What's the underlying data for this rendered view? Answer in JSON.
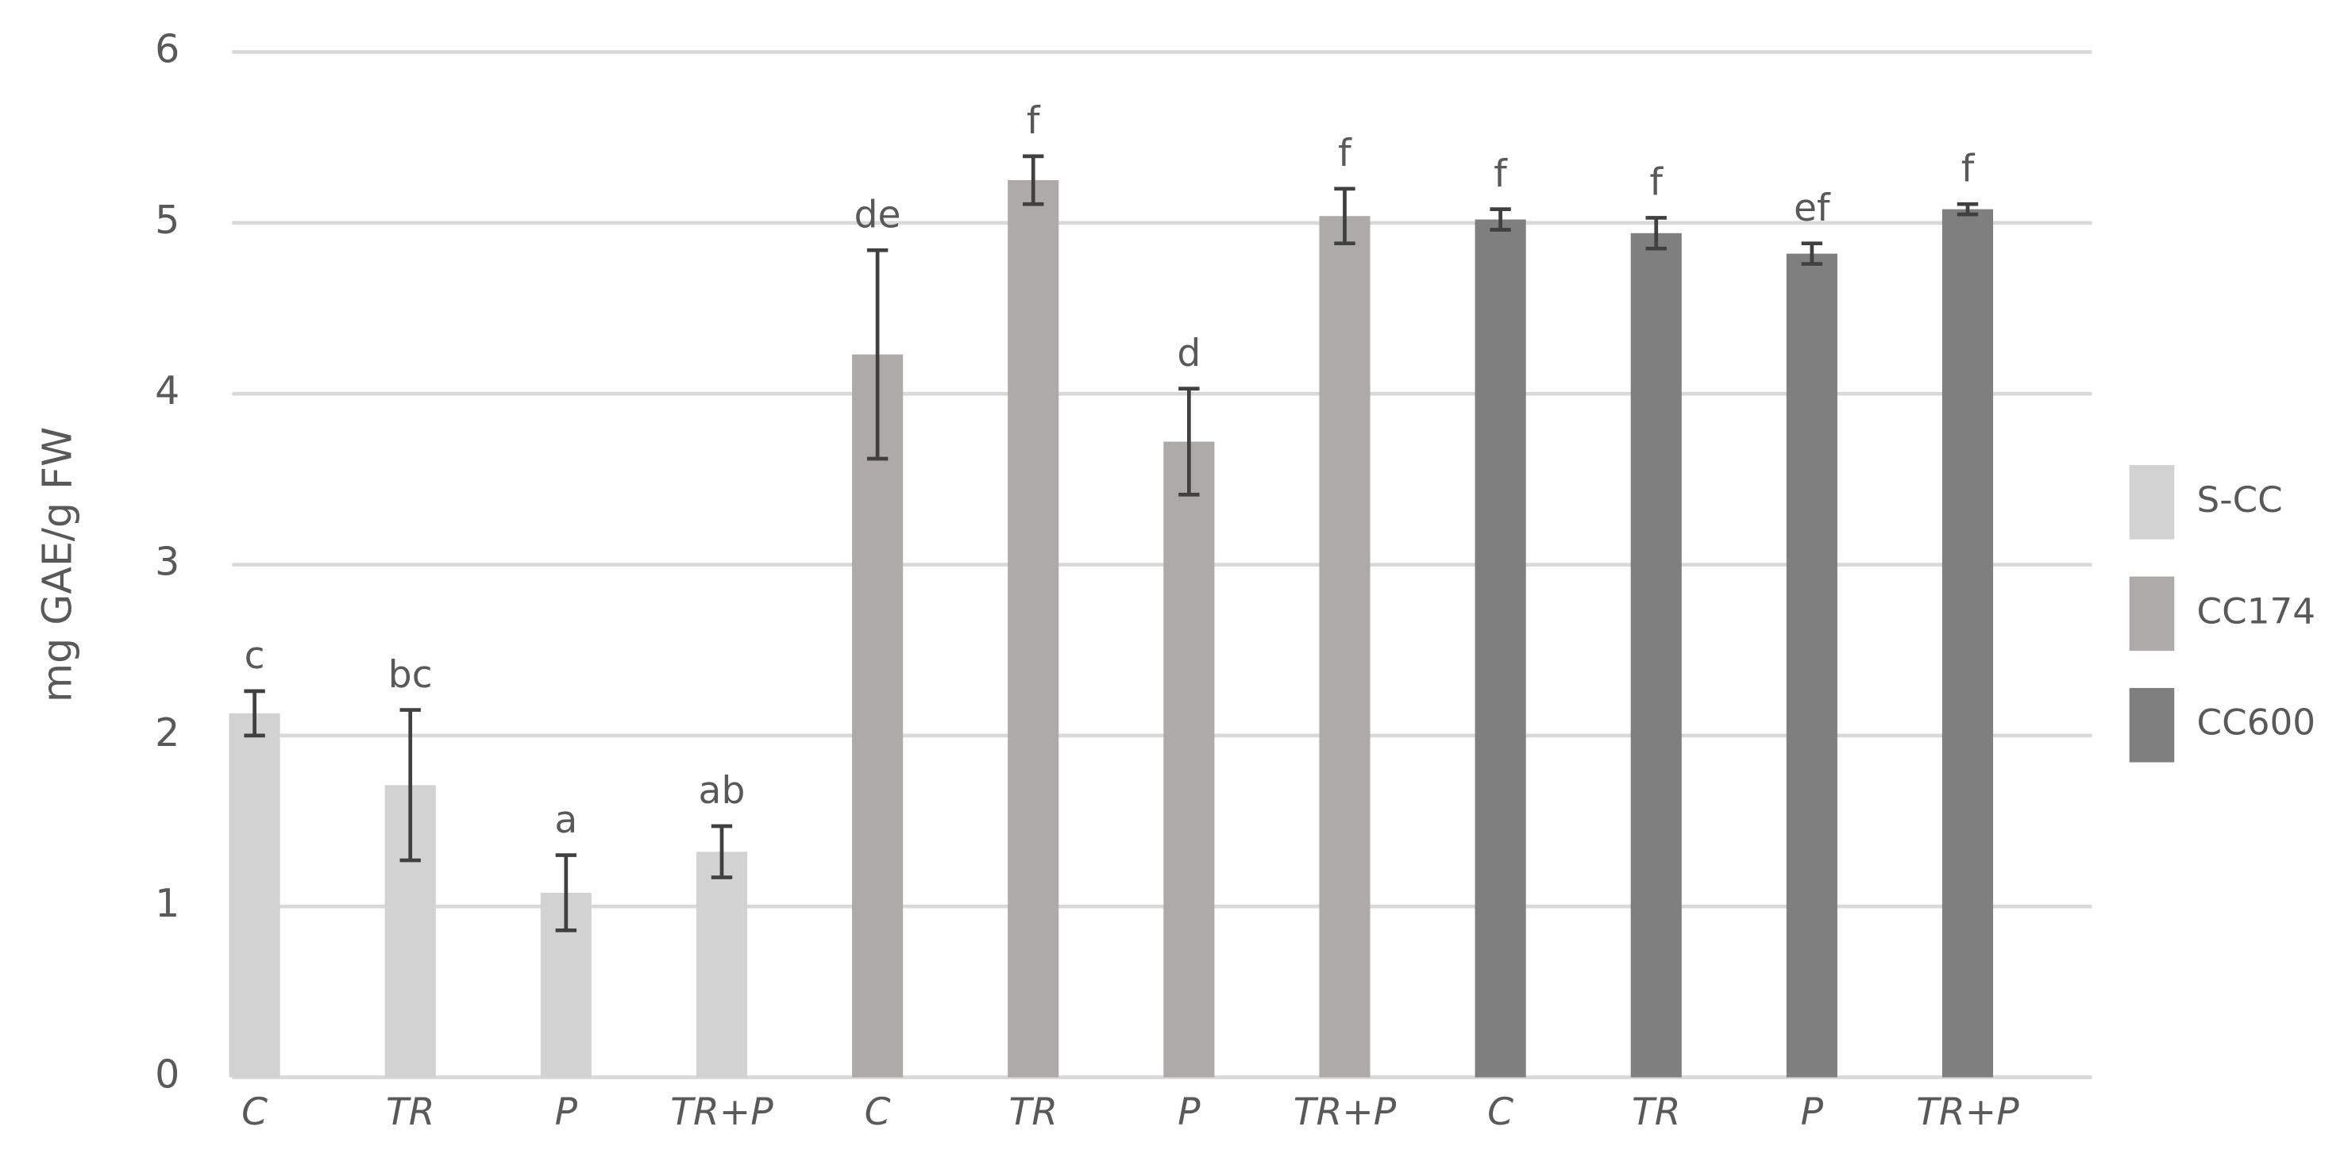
{
  "chart_data": {
    "type": "bar",
    "y_label": "mg GAE/g FW",
    "categories": [
      "C",
      "TR",
      "P",
      "TR+P",
      "C",
      "TR",
      "P",
      "TR+P",
      "C",
      "TR",
      "P",
      "TR+P"
    ],
    "series": [
      {
        "name": "S-CC",
        "color": "#d3d2d2",
        "values": [
          2.13,
          1.71,
          1.08,
          1.32,
          null,
          null,
          null,
          null,
          null,
          null,
          null,
          null
        ],
        "errors": [
          0.13,
          0.44,
          0.22,
          0.15,
          null,
          null,
          null,
          null,
          null,
          null,
          null,
          null
        ],
        "letters": [
          "c",
          "bc",
          "a",
          "ab",
          null,
          null,
          null,
          null,
          null,
          null,
          null,
          null
        ]
      },
      {
        "name": "CC174",
        "color": "#adaaa9",
        "values": [
          null,
          null,
          null,
          null,
          4.23,
          5.25,
          3.72,
          5.04,
          null,
          null,
          null,
          null
        ],
        "errors": [
          null,
          null,
          null,
          null,
          0.61,
          0.14,
          0.31,
          0.16,
          null,
          null,
          null,
          null
        ],
        "letters": [
          null,
          null,
          null,
          null,
          "de",
          "f",
          "d",
          "f",
          null,
          null,
          null,
          null
        ]
      },
      {
        "name": "CC600",
        "color": "#7f7f7f",
        "values": [
          null,
          null,
          null,
          null,
          null,
          null,
          null,
          null,
          5.02,
          4.94,
          4.82,
          5.08
        ],
        "errors": [
          null,
          null,
          null,
          null,
          null,
          null,
          null,
          null,
          0.06,
          0.09,
          0.06,
          0.03
        ],
        "letters": [
          null,
          null,
          null,
          null,
          null,
          null,
          null,
          null,
          "f",
          "f",
          "ef",
          "f"
        ]
      }
    ],
    "ylim": [
      0,
      6
    ],
    "yticks": [
      0,
      1,
      2,
      3,
      4,
      5,
      6
    ],
    "grid": true,
    "legend": "right"
  }
}
